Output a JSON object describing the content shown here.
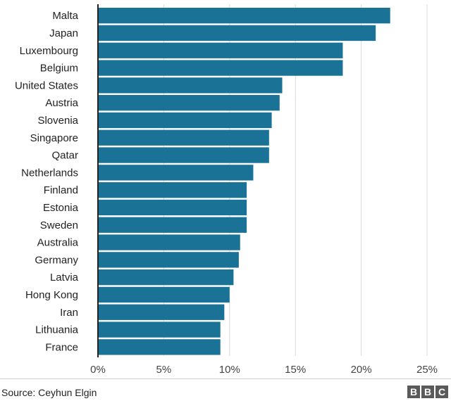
{
  "chart_data": {
    "type": "bar",
    "orientation": "horizontal",
    "categories": [
      "Malta",
      "Japan",
      "Luxembourg",
      "Belgium",
      "United States",
      "Austria",
      "Slovenia",
      "Singapore",
      "Qatar",
      "Netherlands",
      "Finland",
      "Estonia",
      "Sweden",
      "Australia",
      "Germany",
      "Latvia",
      "Hong Kong",
      "Iran",
      "Lithuania",
      "France"
    ],
    "values": [
      22.2,
      21.1,
      18.6,
      18.6,
      14.0,
      13.8,
      13.2,
      13.0,
      13.0,
      11.8,
      11.3,
      11.3,
      11.3,
      10.8,
      10.7,
      10.3,
      10.0,
      9.6,
      9.3,
      9.3
    ],
    "xlim": [
      0,
      25
    ],
    "ticks": [
      0,
      5,
      10,
      15,
      20,
      25
    ],
    "tick_labels": [
      "0%",
      "5%",
      "10%",
      "15%",
      "20%",
      "25%"
    ],
    "grid": true,
    "bar_color": "#1a7396",
    "title": "",
    "xlabel": "",
    "ylabel": ""
  },
  "footer": {
    "source": "Source: Ceyhun Elgin",
    "logo_letters": [
      "B",
      "B",
      "C"
    ]
  }
}
